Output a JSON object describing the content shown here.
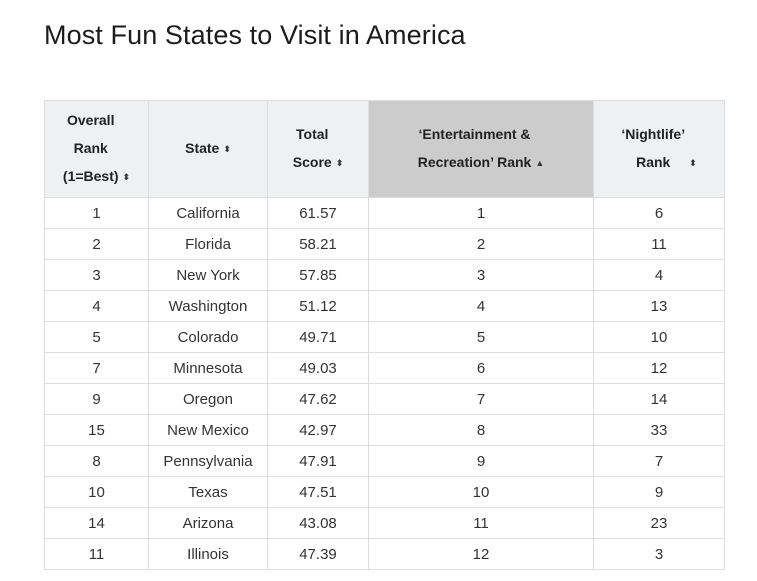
{
  "page": {
    "title": "Most Fun States to Visit in America"
  },
  "table": {
    "headers": [
      {
        "label": "Overall\nRank\n(1=Best)",
        "sort_icon": "⬍"
      },
      {
        "label": "State",
        "sort_icon": "⬍"
      },
      {
        "label": "Total\nScore",
        "sort_icon": "⬍"
      },
      {
        "label": "‘Entertainment &\nRecreation’ Rank",
        "sort_icon": "▲"
      },
      {
        "label": "‘Nightlife’\nRank",
        "sort_icon": "⬍"
      }
    ],
    "rows": [
      [
        "1",
        "California",
        "61.57",
        "1",
        "6"
      ],
      [
        "2",
        "Florida",
        "58.21",
        "2",
        "11"
      ],
      [
        "3",
        "New York",
        "57.85",
        "3",
        "4"
      ],
      [
        "4",
        "Washington",
        "51.12",
        "4",
        "13"
      ],
      [
        "5",
        "Colorado",
        "49.71",
        "5",
        "10"
      ],
      [
        "7",
        "Minnesota",
        "49.03",
        "6",
        "12"
      ],
      [
        "9",
        "Oregon",
        "47.62",
        "7",
        "14"
      ],
      [
        "15",
        "New Mexico",
        "42.97",
        "8",
        "33"
      ],
      [
        "8",
        "Pennsylvania",
        "47.91",
        "9",
        "7"
      ],
      [
        "10",
        "Texas",
        "47.51",
        "10",
        "9"
      ],
      [
        "14",
        "Arizona",
        "43.08",
        "11",
        "23"
      ],
      [
        "11",
        "Illinois",
        "47.39",
        "12",
        "3"
      ]
    ]
  },
  "colors": {
    "header_bg": "#eef0f2",
    "sorted_header_bg": "#cccccc",
    "border": "#dddddd"
  }
}
